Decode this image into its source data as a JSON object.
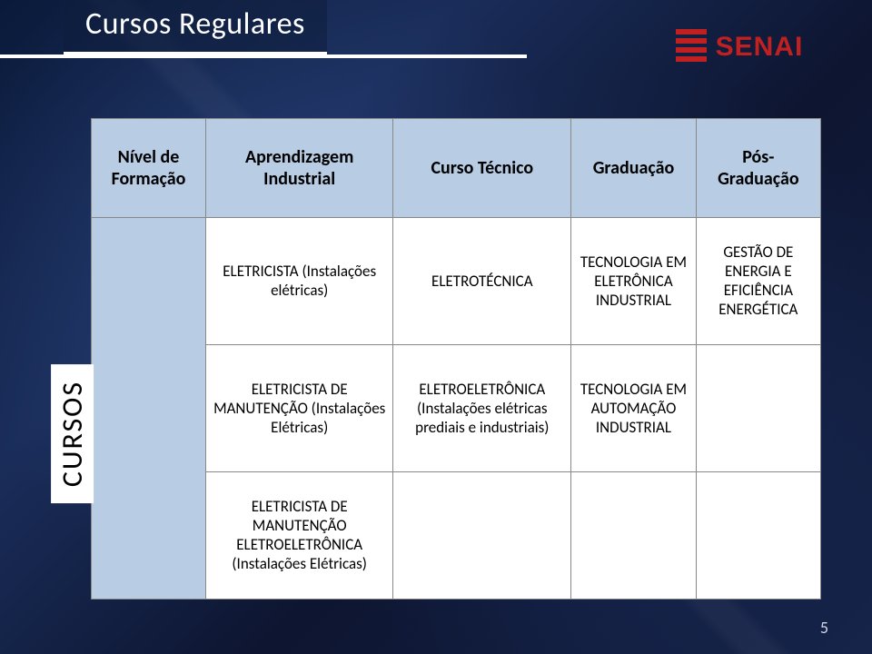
{
  "title": "Cursos Regulares",
  "logo_text": "SENAI",
  "page_number": "5",
  "columns": {
    "row_header": "Nível de Formação",
    "c1": "Aprendizagem Industrial",
    "c2": "Curso Técnico",
    "c3": "Graduação",
    "c4": "Pós-Graduação"
  },
  "side_label": "CURSOS",
  "rows": [
    {
      "c1": "ELETRICISTA (Instalações elétricas)",
      "c2": "ELETROTÉCNICA",
      "c3": "TECNOLOGIA EM ELETRÔNICA INDUSTRIAL",
      "c4": "GESTÃO DE ENERGIA E EFICIÊNCIA ENERGÉTICA"
    },
    {
      "c1": "ELETRICISTA DE MANUTENÇÃO (Instalações Elétricas)",
      "c2": "ELETROELETRÔNICA (Instalações elétricas prediais e industriais)",
      "c3": "TECNOLOGIA EM AUTOMAÇÃO INDUSTRIAL",
      "c4": ""
    },
    {
      "c1": "ELETRICISTA DE MANUTENÇÃO ELETROELETRÔNICA (Instalações Elétricas)",
      "c2": "",
      "c3": "",
      "c4": ""
    }
  ],
  "style": {
    "header_bg": "#b8cce4",
    "cell_bg": "#ffffff",
    "border_color": "#888888",
    "title_color": "#ffffff",
    "logo_color": "#c02020",
    "header_fontsize": 20,
    "cell_fontsize": 17,
    "title_fontsize": 34
  }
}
